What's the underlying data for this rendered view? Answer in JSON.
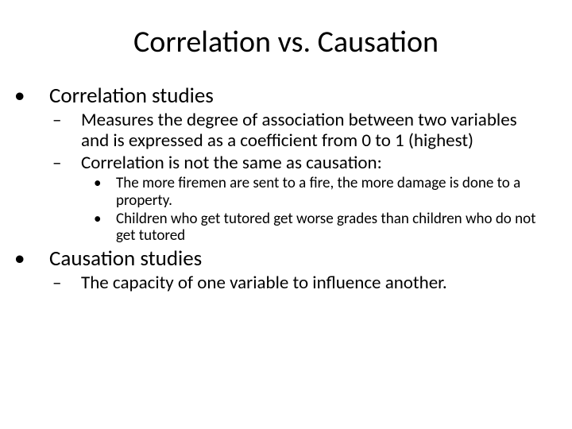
{
  "title": "Correlation vs. Causation",
  "items": [
    {
      "text": "Correlation studies",
      "children": [
        {
          "text": "Measures the degree of association between two variables and is expressed as a coefficient from 0 to 1 (highest)",
          "children": []
        },
        {
          "text": "Correlation is not the same as causation:",
          "children": [
            {
              "text": "The more firemen are sent to a fire, the more damage is done to a property."
            },
            {
              "text": "Children who get tutored get worse grades than children who do not get tutored"
            }
          ]
        }
      ]
    },
    {
      "text": "Causation studies",
      "children": [
        {
          "text": "The capacity of one variable to influence another.",
          "children": []
        }
      ]
    }
  ],
  "colors": {
    "background": "#ffffff",
    "text": "#000000"
  },
  "font_family": "Calibri",
  "title_fontsize": 38,
  "lvl1_fontsize": 27,
  "lvl2_fontsize": 23,
  "lvl3_fontsize": 19
}
